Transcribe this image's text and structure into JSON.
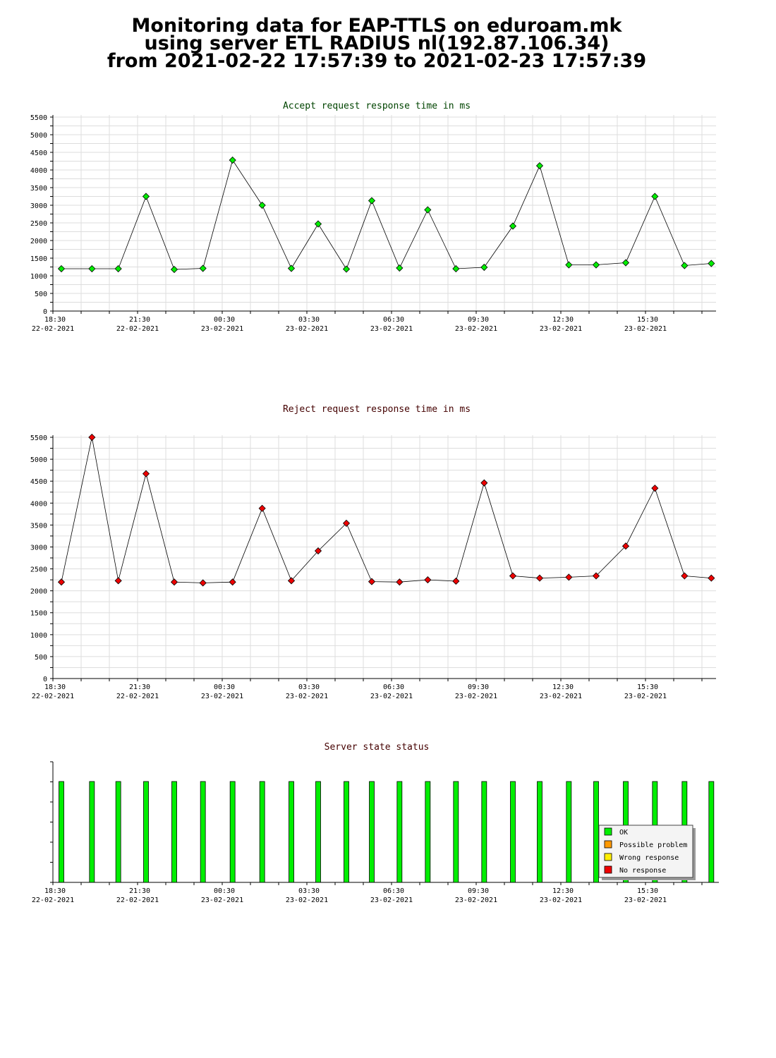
{
  "page_title": {
    "line1": "Monitoring data for EAP-TTLS on eduroam.mk",
    "line2": "using server ETL RADIUS nl(192.87.106.34)",
    "line3": "from 2021-02-22 17:57:39 to 2021-02-23 17:57:39"
  },
  "colors": {
    "accept_title": "#004400",
    "reject_title": "#440000",
    "status_title": "#440000",
    "accept_marker": "#00ee00",
    "reject_marker": "#ee0000",
    "ok": "#00ee00",
    "possible_problem": "#ff9900",
    "wrong_response": "#ffee00",
    "no_response": "#ee0000"
  },
  "chart_data": [
    {
      "type": "line",
      "title": "Accept request response time in ms",
      "xlabel": "",
      "ylabel": "",
      "ylim": [
        0,
        5500
      ],
      "yticks": [
        "0",
        "500",
        "1000",
        "1500",
        "2000",
        "2500",
        "3000",
        "3500",
        "4000",
        "4500",
        "5000",
        "5500"
      ],
      "xtick_labels": [
        [
          "18:30",
          "22-02-2021"
        ],
        [
          "21:30",
          "22-02-2021"
        ],
        [
          "00:30",
          "23-02-2021"
        ],
        [
          "03:30",
          "23-02-2021"
        ],
        [
          "06:30",
          "23-02-2021"
        ],
        [
          "09:30",
          "23-02-2021"
        ],
        [
          "12:30",
          "23-02-2021"
        ],
        [
          "15:30",
          "23-02-2021"
        ]
      ],
      "x": [
        "18:48",
        "19:53",
        "20:49",
        "21:48",
        "22:48",
        "23:49",
        "00:52",
        "01:55",
        "02:57",
        "03:54",
        "04:54",
        "05:48",
        "06:47",
        "07:47",
        "08:47",
        "09:47",
        "10:48",
        "11:45",
        "12:47",
        "13:45",
        "14:48",
        "15:50",
        "16:53",
        "17:50"
      ],
      "values": [
        1200,
        1200,
        1200,
        3250,
        1180,
        1210,
        4280,
        3000,
        1210,
        2470,
        1190,
        3130,
        1220,
        2870,
        1200,
        1240,
        2410,
        4120,
        1310,
        1310,
        1370,
        3250,
        1290,
        1350
      ],
      "grid": true
    },
    {
      "type": "line",
      "title": "Reject request response time in ms",
      "xlabel": "",
      "ylabel": "",
      "ylim": [
        0,
        5500
      ],
      "yticks": [
        "0",
        "500",
        "1000",
        "1500",
        "2000",
        "2500",
        "3000",
        "3500",
        "4000",
        "4500",
        "5000",
        "5500"
      ],
      "xtick_labels": [
        [
          "18:30",
          "22-02-2021"
        ],
        [
          "21:30",
          "22-02-2021"
        ],
        [
          "00:30",
          "23-02-2021"
        ],
        [
          "03:30",
          "23-02-2021"
        ],
        [
          "06:30",
          "23-02-2021"
        ],
        [
          "09:30",
          "23-02-2021"
        ],
        [
          "12:30",
          "23-02-2021"
        ],
        [
          "15:30",
          "23-02-2021"
        ]
      ],
      "x": [
        "18:48",
        "19:53",
        "20:49",
        "21:48",
        "22:48",
        "23:49",
        "00:52",
        "01:55",
        "02:57",
        "03:54",
        "04:54",
        "05:48",
        "06:47",
        "07:47",
        "08:47",
        "09:47",
        "10:48",
        "11:45",
        "12:47",
        "13:45",
        "14:48",
        "15:50",
        "16:53",
        "17:50"
      ],
      "values": [
        2200,
        5500,
        2230,
        4670,
        2200,
        2180,
        2200,
        3880,
        2230,
        2910,
        3540,
        2210,
        2200,
        2250,
        2220,
        4460,
        2340,
        2290,
        2310,
        2340,
        3020,
        4340,
        2340,
        2290
      ],
      "grid": true
    },
    {
      "type": "bar",
      "title": "Server state status",
      "xlabel": "",
      "ylabel": "",
      "xtick_labels": [
        [
          "18:30",
          "22-02-2021"
        ],
        [
          "21:30",
          "22-02-2021"
        ],
        [
          "00:30",
          "23-02-2021"
        ],
        [
          "03:30",
          "23-02-2021"
        ],
        [
          "06:30",
          "23-02-2021"
        ],
        [
          "09:30",
          "23-02-2021"
        ],
        [
          "12:30",
          "23-02-2021"
        ],
        [
          "15:30",
          "23-02-2021"
        ]
      ],
      "x": [
        "18:48",
        "19:53",
        "20:49",
        "21:48",
        "22:48",
        "23:49",
        "00:52",
        "01:55",
        "02:57",
        "03:54",
        "04:54",
        "05:48",
        "06:47",
        "07:47",
        "08:47",
        "09:47",
        "10:48",
        "11:45",
        "12:47",
        "13:45",
        "14:48",
        "15:50",
        "16:53",
        "17:50"
      ],
      "states": [
        "OK",
        "OK",
        "OK",
        "OK",
        "OK",
        "OK",
        "OK",
        "OK",
        "OK",
        "OK",
        "OK",
        "OK",
        "OK",
        "OK",
        "OK",
        "OK",
        "OK",
        "OK",
        "OK",
        "OK",
        "OK",
        "OK",
        "OK",
        "OK"
      ],
      "legend_position": "bottom-right",
      "legend": [
        "OK",
        "Possible problem",
        "Wrong response",
        "No response"
      ]
    }
  ]
}
